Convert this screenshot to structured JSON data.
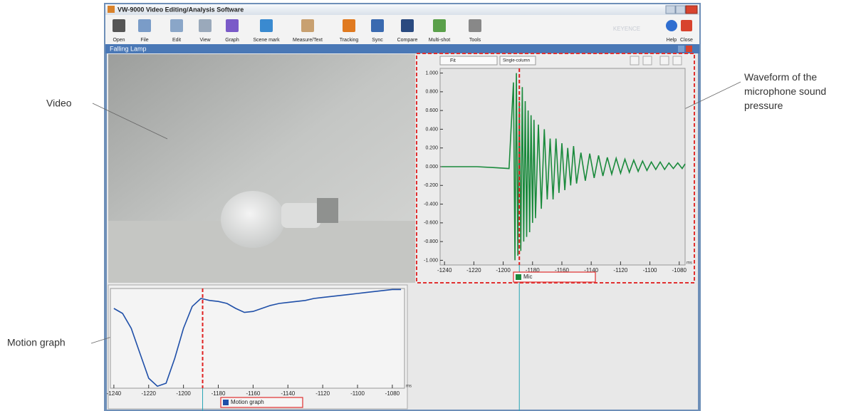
{
  "window": {
    "title": "VW-9000 Video Editing/Analysis Software",
    "toolbar": [
      "Open",
      "File",
      "Edit",
      "View",
      "Graph",
      "Scene mark",
      "Measure/Text",
      "Tracking",
      "Sync",
      "Compare",
      "Multi-shot",
      "Tools"
    ],
    "brand": "KEYENCE",
    "toolbar_right": [
      "Help",
      "Close"
    ]
  },
  "document": {
    "title": "Falling Lamp"
  },
  "waveform_panel": {
    "zoom": "Fit",
    "layout": "Single-column"
  },
  "annotations": {
    "video": "Video",
    "motion": "Motion graph",
    "waveform": "Waveform of the microphone sound pressure"
  },
  "chart_data": [
    {
      "type": "line",
      "x": [
        -1242,
        -1230,
        -1218,
        -1206,
        -1196,
        -1193,
        -1192,
        -1191,
        -1190,
        -1189,
        -1188,
        -1187,
        -1186,
        -1185,
        -1184,
        -1183,
        -1182,
        -1181,
        -1180,
        -1179,
        -1178,
        -1176,
        -1174,
        -1172,
        -1170,
        -1168,
        -1166,
        -1164,
        -1162,
        -1160,
        -1158,
        -1156,
        -1154,
        -1152,
        -1150,
        -1147,
        -1144,
        -1141,
        -1138,
        -1135,
        -1132,
        -1129,
        -1126,
        -1123,
        -1120,
        -1117,
        -1114,
        -1111,
        -1108,
        -1105,
        -1102,
        -1099,
        -1096,
        -1093,
        -1090,
        -1087,
        -1084,
        -1081,
        -1078,
        -1076
      ],
      "series": [
        {
          "name": "Mic",
          "color": "#1a8a3c",
          "values": [
            0.0,
            0.0,
            0.0,
            -0.01,
            -0.02,
            0.9,
            -1.0,
            1.0,
            -0.95,
            0.7,
            -0.9,
            0.85,
            -0.8,
            0.7,
            -0.75,
            0.6,
            -0.7,
            0.55,
            -0.6,
            0.5,
            -0.55,
            0.45,
            -0.45,
            0.4,
            -0.35,
            0.3,
            -0.35,
            0.3,
            -0.28,
            0.25,
            -0.25,
            0.2,
            -0.2,
            0.22,
            -0.18,
            0.15,
            -0.15,
            0.14,
            -0.12,
            0.12,
            -0.1,
            0.1,
            -0.08,
            0.09,
            -0.07,
            0.08,
            -0.06,
            0.07,
            -0.05,
            0.06,
            -0.04,
            0.05,
            -0.03,
            0.05,
            -0.03,
            0.04,
            -0.02,
            0.04,
            -0.02,
            0.03
          ]
        }
      ],
      "xlim": [
        -1243,
        -1076
      ],
      "ylim": [
        -1.05,
        1.05
      ],
      "xticks": [
        -1240,
        -1220,
        -1200,
        -1180,
        -1160,
        -1140,
        -1120,
        -1100,
        -1080
      ],
      "yticks": [
        {
          "value": 1,
          "label": "1.000"
        },
        {
          "value": 0.8,
          "label": "0.800"
        },
        {
          "value": 0.6,
          "label": "0.600"
        },
        {
          "value": 0.4,
          "label": "0.400"
        },
        {
          "value": 0.2,
          "label": "0.200"
        },
        {
          "value": 0,
          "label": "0.000"
        },
        {
          "value": -0.2,
          "label": "-0.200"
        },
        {
          "value": -0.4,
          "label": "-0.400"
        },
        {
          "value": -0.6,
          "label": "-0.600"
        },
        {
          "value": -0.8,
          "label": "-0.800"
        },
        {
          "value": -1,
          "label": "-1.000"
        }
      ],
      "x_unit": "ms",
      "cursor": -1189
    },
    {
      "type": "line",
      "x": [
        -1240,
        -1235,
        -1230,
        -1225,
        -1220,
        -1215,
        -1210,
        -1205,
        -1200,
        -1195,
        -1190,
        -1185,
        -1180,
        -1175,
        -1170,
        -1165,
        -1160,
        -1155,
        -1150,
        -1145,
        -1140,
        -1135,
        -1130,
        -1125,
        -1120,
        -1115,
        -1110,
        -1105,
        -1100,
        -1095,
        -1090,
        -1085,
        -1080,
        -1075
      ],
      "series": [
        {
          "name": "Motion graph",
          "color": "#1f4fa8",
          "values": [
            80,
            75,
            60,
            35,
            10,
            2,
            5,
            30,
            60,
            82,
            90,
            88,
            87,
            85,
            80,
            76,
            77,
            80,
            83,
            85,
            86,
            87,
            88,
            90,
            91,
            92,
            93,
            94,
            95,
            96,
            97,
            98,
            99,
            99
          ]
        }
      ],
      "xlim": [
        -1242,
        -1073
      ],
      "ylim": [
        0,
        100
      ],
      "xticks": [
        -1240,
        -1220,
        -1200,
        -1180,
        -1160,
        -1140,
        -1120,
        -1100,
        -1080
      ],
      "x_unit": "ms",
      "cursor": -1189
    }
  ]
}
